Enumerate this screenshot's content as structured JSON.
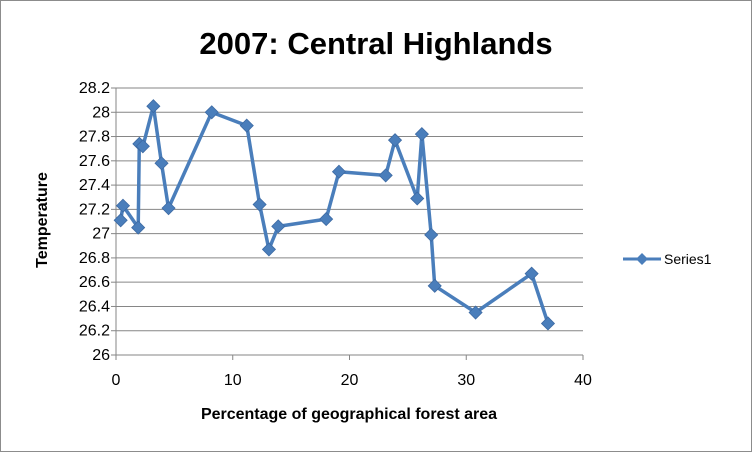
{
  "chart_data": {
    "type": "scatter",
    "title": "2007: Central Highlands",
    "xlabel": "Percentage of geographical forest area",
    "ylabel": "Temperature",
    "xlim": [
      0,
      40
    ],
    "ylim": [
      26,
      28.2
    ],
    "xticks": [
      0,
      10,
      20,
      30,
      40
    ],
    "yticks": [
      26,
      26.2,
      26.4,
      26.6,
      26.8,
      27,
      27.2,
      27.4,
      27.6,
      27.8,
      28,
      28.2
    ],
    "ytick_labels": [
      "26",
      "26.2",
      "26.4",
      "26.6",
      "26.8",
      "27",
      "27.2",
      "27.4",
      "27.6",
      "27.8",
      "28",
      "28.2"
    ],
    "grid": "horizontal",
    "legend_position": "right",
    "series": [
      {
        "name": "Series1",
        "color": "#4a7ebb",
        "marker": "diamond",
        "line": "straight",
        "x": [
          0.4,
          0.6,
          1.9,
          2.0,
          2.3,
          3.2,
          3.9,
          4.5,
          8.2,
          11.2,
          12.3,
          13.1,
          13.9,
          18.0,
          19.1,
          23.1,
          23.9,
          25.8,
          26.2,
          27.0,
          27.3,
          30.8,
          35.6,
          37.0
        ],
        "y": [
          27.11,
          27.23,
          27.05,
          27.74,
          27.72,
          28.05,
          27.58,
          27.21,
          28.0,
          27.89,
          27.24,
          26.87,
          27.06,
          27.12,
          27.51,
          27.48,
          27.77,
          27.29,
          27.82,
          26.99,
          26.57,
          26.35,
          26.67,
          26.26
        ]
      }
    ]
  }
}
